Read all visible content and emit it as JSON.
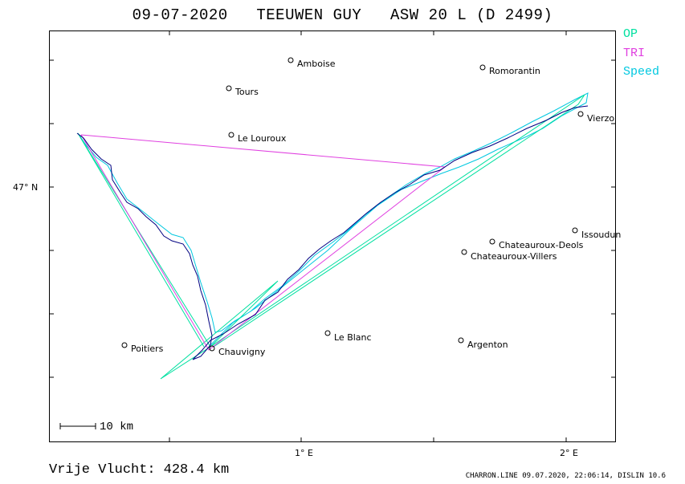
{
  "title": "09-07-2020   TEEUWEN GUY   ASW 20 L (D 2499)",
  "legend": {
    "op": {
      "label": "OP",
      "color": "#00e0a0"
    },
    "tri": {
      "label": "TRI",
      "color": "#e040e0"
    },
    "speed": {
      "label": "Speed",
      "color": "#00c8e0"
    }
  },
  "axes": {
    "lat_label": "47° N",
    "lon_labels": [
      "1° E",
      "2° E"
    ]
  },
  "places": [
    {
      "name": "Amboise"
    },
    {
      "name": "Romorantin"
    },
    {
      "name": "Tours"
    },
    {
      "name": "Vierzo"
    },
    {
      "name": "Le Louroux"
    },
    {
      "name": "Issoudun"
    },
    {
      "name": "Chateauroux-Deols"
    },
    {
      "name": "Chateauroux-Villers"
    },
    {
      "name": "Le Blanc"
    },
    {
      "name": "Argenton"
    },
    {
      "name": "Poitiers"
    },
    {
      "name": "Chauvigny"
    }
  ],
  "scale_label": "10 km",
  "distance": {
    "label": "Vrije Vlucht:",
    "value": "428.4 km"
  },
  "footer": "CHARRON.LINE 09.07.2020, 22:06:14, DISLIN 10.6",
  "colors": {
    "track": "#000080",
    "frame": "#000000"
  }
}
